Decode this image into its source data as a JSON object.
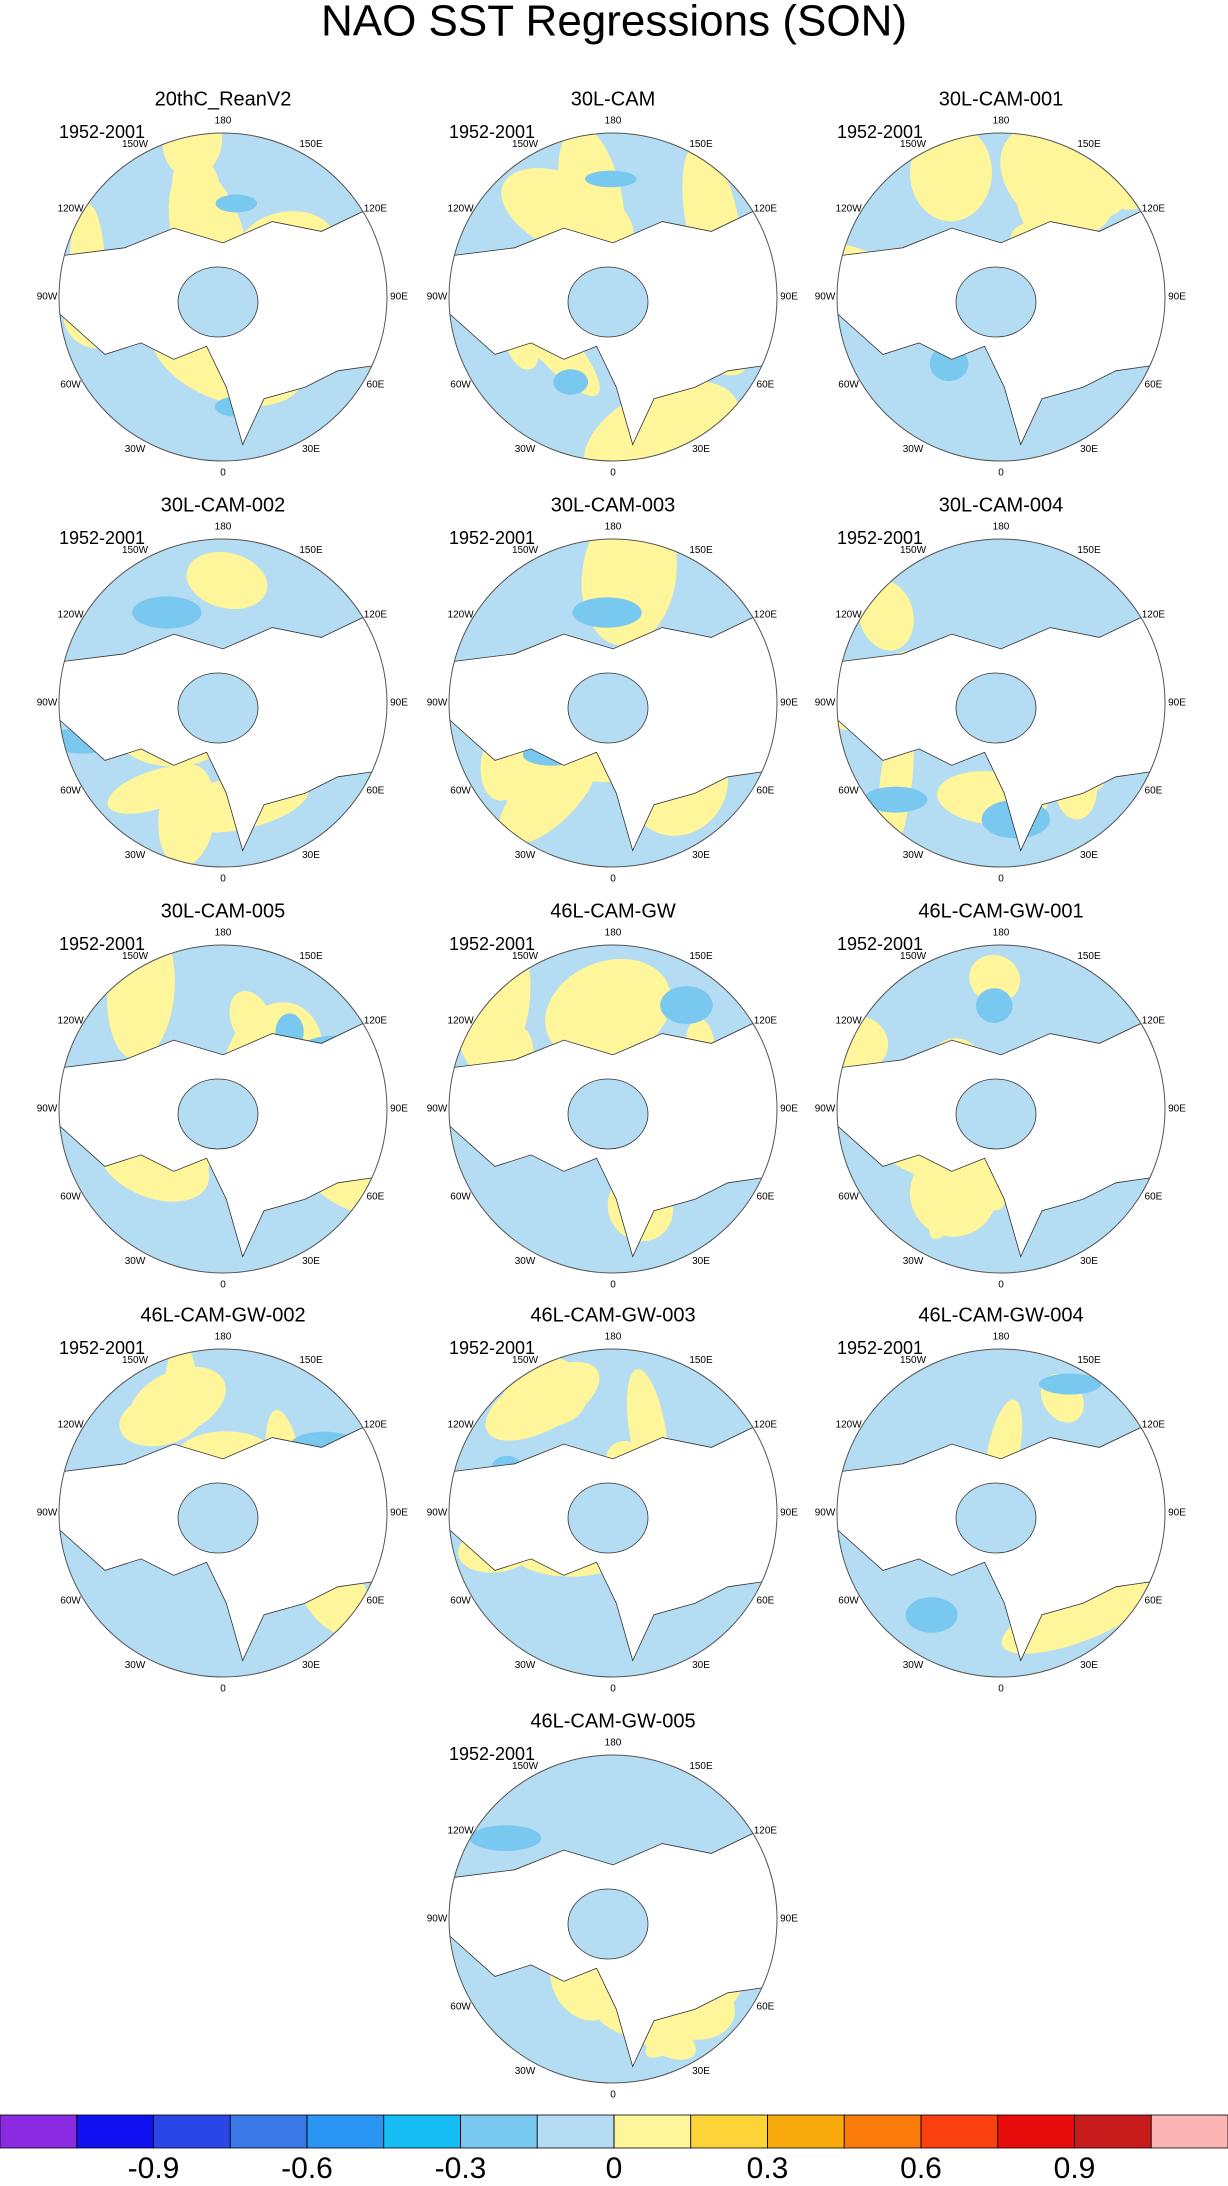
{
  "title": "NAO SST Regressions (SON)",
  "panels": [
    {
      "title": "20thC_ReanV2",
      "period": "1952-2001"
    },
    {
      "title": "30L-CAM",
      "period": "1952-2001"
    },
    {
      "title": "30L-CAM-001",
      "period": "1952-2001"
    },
    {
      "title": "30L-CAM-002",
      "period": "1952-2001"
    },
    {
      "title": "30L-CAM-003",
      "period": "1952-2001"
    },
    {
      "title": "30L-CAM-004",
      "period": "1952-2001"
    },
    {
      "title": "30L-CAM-005",
      "period": "1952-2001"
    },
    {
      "title": "46L-CAM-GW",
      "period": "1952-2001"
    },
    {
      "title": "46L-CAM-GW-001",
      "period": "1952-2001"
    },
    {
      "title": "46L-CAM-GW-002",
      "period": "1952-2001"
    },
    {
      "title": "46L-CAM-GW-003",
      "period": "1952-2001"
    },
    {
      "title": "46L-CAM-GW-004",
      "period": "1952-2001"
    },
    {
      "title": "46L-CAM-GW-005",
      "period": "1952-2001"
    }
  ],
  "lon_ticks": [
    180,
    {
      "value": -150,
      "label": "150W"
    },
    {
      "value": 150,
      "label": "150E"
    },
    {
      "value": -120,
      "label": "120W"
    },
    {
      "value": 120,
      "label": "120E"
    },
    {
      "value": -90,
      "label": "90W"
    },
    {
      "value": 90,
      "label": "90E"
    },
    {
      "value": -60,
      "label": "60W"
    },
    {
      "value": 60,
      "label": "60E"
    },
    {
      "value": -30,
      "label": "30W"
    },
    {
      "value": 30,
      "label": "30E"
    },
    0
  ],
  "colorbar": {
    "colors": [
      "#8a2be2",
      "#1010f0",
      "#2a46e6",
      "#3a78e8",
      "#2a96f4",
      "#16bcf4",
      "#78c8f0",
      "#b4dcf2",
      "#fff59a",
      "#fcd437",
      "#f8aa0c",
      "#fa7a0a",
      "#fa4010",
      "#e80c0c",
      "#c81c1c",
      "#fdb4b4"
    ],
    "lim": [
      -1.2,
      1.2
    ],
    "ticks": [
      -0.9,
      -0.6,
      -0.3,
      0,
      0.3,
      0.6,
      0.9
    ]
  }
}
